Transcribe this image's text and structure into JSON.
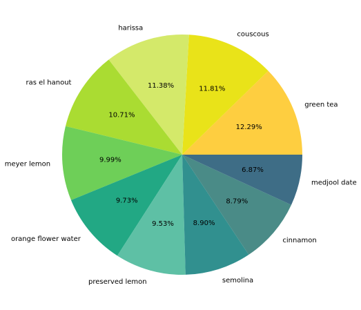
{
  "chart_data": {
    "type": "pie",
    "start_angle_deg": 0,
    "direction": "counterclockwise",
    "categories": [
      "green tea",
      "couscous",
      "harissa",
      "ras el hanout",
      "meyer lemon",
      "orange flower water",
      "preserved lemon",
      "semolina",
      "cinnamon",
      "medjool date"
    ],
    "values": [
      12.29,
      11.81,
      11.38,
      10.71,
      9.99,
      9.73,
      9.53,
      8.9,
      8.79,
      6.87
    ],
    "percent_labels": [
      "12.29%",
      "11.81%",
      "11.38%",
      "10.71%",
      "9.99%",
      "9.73%",
      "9.53%",
      "8.90%",
      "8.79%",
      "6.87%"
    ],
    "colors": [
      "#fece40",
      "#e9e319",
      "#d4e96a",
      "#aadc32",
      "#6ecf58",
      "#22a884",
      "#5ec0a5",
      "#31908f",
      "#4a8b87",
      "#3e6d86"
    ],
    "legend": "none",
    "title": ""
  }
}
